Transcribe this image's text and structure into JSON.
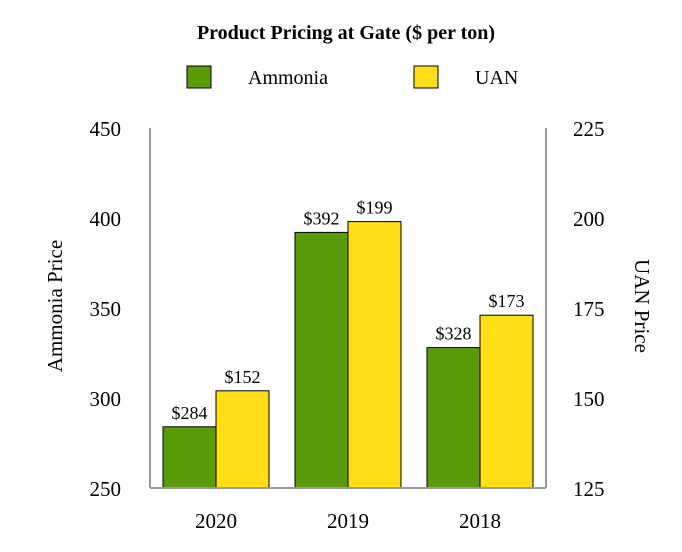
{
  "chart_data": {
    "type": "bar",
    "title": "Product Pricing at Gate ($ per ton)",
    "categories": [
      "2020",
      "2019",
      "2018"
    ],
    "series": [
      {
        "name": "Ammonia",
        "axis": "left",
        "color": "#5a9b0a",
        "values": [
          284,
          392,
          328
        ],
        "labels": [
          "$284",
          "$392",
          "$328"
        ]
      },
      {
        "name": "UAN",
        "axis": "right",
        "color": "#ffdd17",
        "values": [
          152,
          199,
          173
        ],
        "labels": [
          "$152",
          "$199",
          "$173"
        ]
      }
    ],
    "y_left": {
      "label": "Ammonia Price",
      "range": [
        250,
        450
      ],
      "ticks": [
        "250",
        "300",
        "350",
        "400",
        "450"
      ]
    },
    "y_right": {
      "label": "UAN Price",
      "range": [
        125,
        225
      ],
      "ticks": [
        "125",
        "150",
        "175",
        "200",
        "225"
      ]
    },
    "legend_position": "top-center",
    "grid": false
  }
}
